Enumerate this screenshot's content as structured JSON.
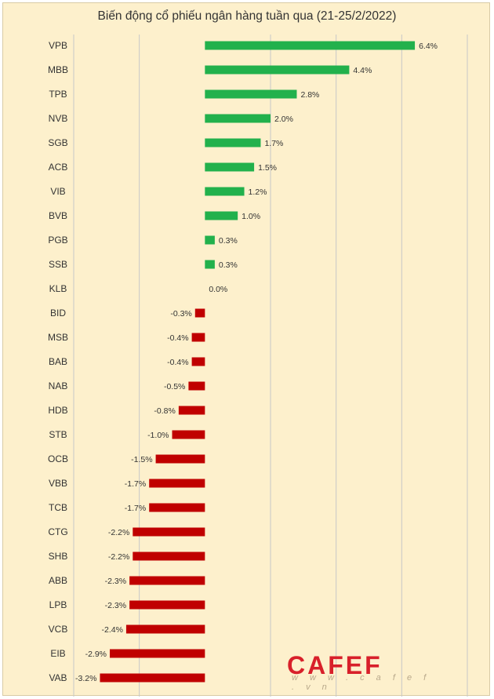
{
  "chart_data": {
    "type": "bar",
    "orientation": "horizontal",
    "title": "Biến động cổ phiếu ngân hàng tuần qua (21-25/2/2022)",
    "xlabel": "",
    "ylabel": "",
    "xlim": [
      -4,
      8
    ],
    "grid": true,
    "categories": [
      "VPB",
      "MBB",
      "TPB",
      "NVB",
      "SGB",
      "ACB",
      "VIB",
      "BVB",
      "PGB",
      "SSB",
      "KLB",
      "BID",
      "MSB",
      "BAB",
      "NAB",
      "HDB",
      "STB",
      "OCB",
      "VBB",
      "TCB",
      "CTG",
      "SHB",
      "ABB",
      "LPB",
      "VCB",
      "EIB",
      "VAB"
    ],
    "values": [
      6.4,
      4.4,
      2.8,
      2.0,
      1.7,
      1.5,
      1.2,
      1.0,
      0.3,
      0.3,
      0.0,
      -0.3,
      -0.4,
      -0.4,
      -0.5,
      -0.8,
      -1.0,
      -1.5,
      -1.7,
      -1.7,
      -2.2,
      -2.2,
      -2.3,
      -2.3,
      -2.4,
      -2.9,
      -3.2
    ],
    "labels": [
      "6.4%",
      "4.4%",
      "2.8%",
      "2.0%",
      "1.7%",
      "1.5%",
      "1.2%",
      "1.0%",
      "0.3%",
      "0.3%",
      "0.0%",
      "-0.3%",
      "-0.4%",
      "-0.4%",
      "-0.5%",
      "-0.8%",
      "-1.0%",
      "-1.5%",
      "-1.7%",
      "-1.7%",
      "-2.2%",
      "-2.2%",
      "-2.3%",
      "-2.3%",
      "-2.4%",
      "-2.9%",
      "-3.2%"
    ],
    "positive_color": "#22b14c",
    "negative_color": "#c00000"
  },
  "watermark": {
    "brand": "CAFEF",
    "url": "w w w . c a f e f . v n"
  },
  "colors": {
    "background": "#fdf0cc",
    "grid": "#c8c8c8",
    "text": "#333333"
  }
}
